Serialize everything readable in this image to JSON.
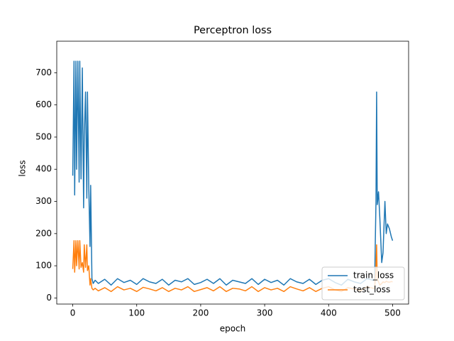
{
  "chart_data": {
    "type": "line",
    "title": "Perceptron loss",
    "x_label": "epoch",
    "y_label": "loss",
    "x": [
      0,
      2,
      3,
      5,
      6,
      8,
      10,
      11,
      13,
      15,
      17,
      18,
      20,
      22,
      23,
      25,
      27,
      28,
      30,
      32,
      35,
      40,
      50,
      60,
      70,
      80,
      90,
      100,
      110,
      120,
      130,
      140,
      150,
      160,
      170,
      180,
      190,
      200,
      210,
      220,
      230,
      240,
      250,
      260,
      270,
      280,
      290,
      300,
      310,
      320,
      330,
      340,
      350,
      360,
      370,
      380,
      390,
      400,
      410,
      420,
      430,
      440,
      450,
      460,
      470,
      472,
      474,
      475,
      476,
      478,
      480,
      483,
      485,
      488,
      490,
      492,
      495,
      498,
      500
    ],
    "series": [
      {
        "name": "train_loss",
        "color": "#1f77b4",
        "values": [
          380,
          736,
          320,
          736,
          400,
          736,
          360,
          736,
          370,
          715,
          280,
          500,
          640,
          310,
          640,
          350,
          160,
          350,
          60,
          45,
          55,
          45,
          58,
          40,
          60,
          48,
          55,
          42,
          60,
          50,
          45,
          58,
          40,
          55,
          50,
          60,
          42,
          48,
          58,
          45,
          60,
          40,
          55,
          50,
          45,
          60,
          42,
          58,
          48,
          55,
          40,
          60,
          50,
          45,
          58,
          42,
          55,
          60,
          48,
          40,
          58,
          50,
          45,
          60,
          55,
          60,
          300,
          640,
          290,
          330,
          250,
          110,
          140,
          300,
          200,
          230,
          215,
          190,
          178
        ]
      },
      {
        "name": "test_loss",
        "color": "#ff7f0e",
        "values": [
          90,
          178,
          80,
          178,
          100,
          178,
          90,
          178,
          95,
          110,
          80,
          165,
          95,
          165,
          85,
          100,
          40,
          60,
          30,
          25,
          30,
          22,
          32,
          20,
          35,
          25,
          30,
          20,
          33,
          28,
          22,
          32,
          20,
          30,
          25,
          35,
          20,
          26,
          32,
          22,
          35,
          20,
          30,
          28,
          22,
          35,
          20,
          32,
          25,
          30,
          20,
          35,
          28,
          22,
          32,
          20,
          30,
          35,
          25,
          20,
          32,
          28,
          22,
          35,
          30,
          30,
          100,
          165,
          60,
          50,
          40,
          45,
          50,
          48,
          52,
          50,
          49,
          51,
          50
        ]
      }
    ],
    "xlim": [
      -25,
      525
    ],
    "ylim": [
      -19,
      798
    ],
    "xticks": [
      0,
      100,
      200,
      300,
      400,
      500
    ],
    "yticks": [
      0,
      100,
      200,
      300,
      400,
      500,
      600,
      700
    ],
    "legend": "lower right"
  }
}
